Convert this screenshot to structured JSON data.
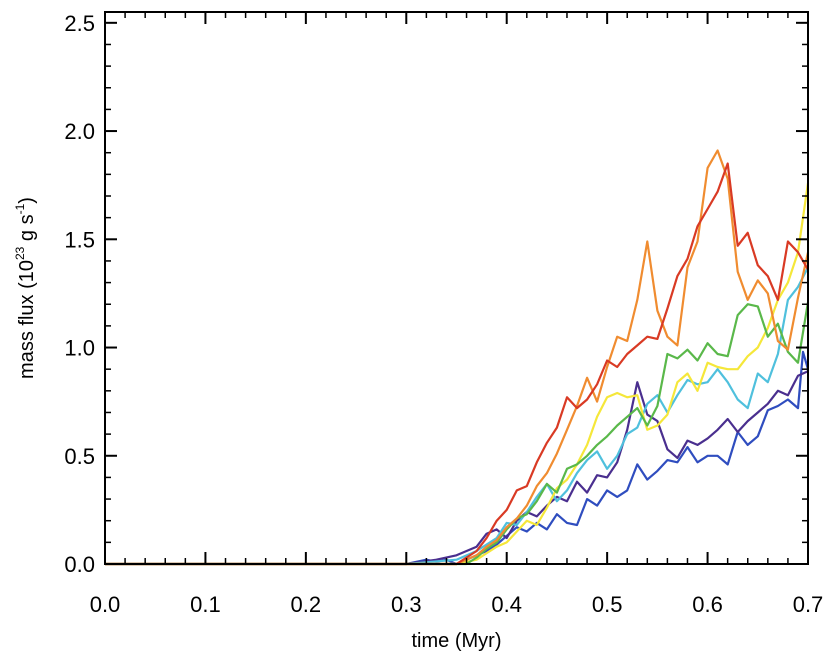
{
  "chart_data": {
    "type": "line",
    "title": "",
    "xlabel": "time (Myr)",
    "ylabel_parts": {
      "main": "mass flux (10",
      "exp": "23",
      "unit": " g s",
      "unit_exp": "-1",
      "close": ")"
    },
    "xlim": [
      0.0,
      0.7
    ],
    "ylim": [
      0.0,
      2.55
    ],
    "x_ticks": [
      "0.0",
      "0.1",
      "0.2",
      "0.3",
      "0.4",
      "0.5",
      "0.6",
      "0.7"
    ],
    "y_ticks": [
      "0.0",
      "0.5",
      "1.0",
      "1.5",
      "2.0",
      "2.5"
    ],
    "grid": false,
    "legend": "none",
    "series": [
      {
        "color": "#2f4dbf",
        "points": [
          [
            0.0,
            0.0
          ],
          [
            0.3,
            0.0
          ],
          [
            0.32,
            0.02
          ],
          [
            0.33,
            0.01
          ],
          [
            0.34,
            0.02
          ],
          [
            0.35,
            0.0
          ],
          [
            0.36,
            0.02
          ],
          [
            0.37,
            0.04
          ],
          [
            0.38,
            0.06
          ],
          [
            0.39,
            0.09
          ],
          [
            0.4,
            0.13
          ],
          [
            0.41,
            0.17
          ],
          [
            0.42,
            0.15
          ],
          [
            0.43,
            0.19
          ],
          [
            0.44,
            0.16
          ],
          [
            0.45,
            0.23
          ],
          [
            0.46,
            0.19
          ],
          [
            0.47,
            0.18
          ],
          [
            0.48,
            0.3
          ],
          [
            0.49,
            0.27
          ],
          [
            0.5,
            0.34
          ],
          [
            0.51,
            0.31
          ],
          [
            0.52,
            0.34
          ],
          [
            0.53,
            0.46
          ],
          [
            0.54,
            0.39
          ],
          [
            0.55,
            0.43
          ],
          [
            0.56,
            0.48
          ],
          [
            0.57,
            0.47
          ],
          [
            0.58,
            0.54
          ],
          [
            0.59,
            0.47
          ],
          [
            0.6,
            0.5
          ],
          [
            0.61,
            0.5
          ],
          [
            0.62,
            0.46
          ],
          [
            0.63,
            0.61
          ],
          [
            0.64,
            0.55
          ],
          [
            0.65,
            0.59
          ],
          [
            0.66,
            0.71
          ],
          [
            0.67,
            0.73
          ],
          [
            0.68,
            0.76
          ],
          [
            0.69,
            0.72
          ],
          [
            0.695,
            0.98
          ],
          [
            0.7,
            0.9
          ]
        ]
      },
      {
        "color": "#4a2f8f",
        "points": [
          [
            0.0,
            0.0
          ],
          [
            0.3,
            0.0
          ],
          [
            0.33,
            0.02
          ],
          [
            0.35,
            0.04
          ],
          [
            0.37,
            0.08
          ],
          [
            0.38,
            0.14
          ],
          [
            0.39,
            0.16
          ],
          [
            0.4,
            0.12
          ],
          [
            0.41,
            0.2
          ],
          [
            0.42,
            0.24
          ],
          [
            0.43,
            0.22
          ],
          [
            0.44,
            0.27
          ],
          [
            0.45,
            0.31
          ],
          [
            0.46,
            0.29
          ],
          [
            0.47,
            0.38
          ],
          [
            0.48,
            0.33
          ],
          [
            0.49,
            0.41
          ],
          [
            0.5,
            0.4
          ],
          [
            0.51,
            0.47
          ],
          [
            0.52,
            0.62
          ],
          [
            0.53,
            0.84
          ],
          [
            0.54,
            0.69
          ],
          [
            0.55,
            0.66
          ],
          [
            0.56,
            0.53
          ],
          [
            0.57,
            0.49
          ],
          [
            0.58,
            0.57
          ],
          [
            0.59,
            0.55
          ],
          [
            0.6,
            0.58
          ],
          [
            0.61,
            0.62
          ],
          [
            0.62,
            0.67
          ],
          [
            0.63,
            0.61
          ],
          [
            0.64,
            0.66
          ],
          [
            0.65,
            0.7
          ],
          [
            0.66,
            0.74
          ],
          [
            0.67,
            0.8
          ],
          [
            0.68,
            0.78
          ],
          [
            0.69,
            0.87
          ],
          [
            0.7,
            0.89
          ]
        ]
      },
      {
        "color": "#4fc0dd",
        "points": [
          [
            0.0,
            0.0
          ],
          [
            0.3,
            0.0
          ],
          [
            0.35,
            0.02
          ],
          [
            0.37,
            0.06
          ],
          [
            0.38,
            0.09
          ],
          [
            0.39,
            0.12
          ],
          [
            0.4,
            0.19
          ],
          [
            0.41,
            0.18
          ],
          [
            0.42,
            0.24
          ],
          [
            0.43,
            0.31
          ],
          [
            0.44,
            0.37
          ],
          [
            0.45,
            0.29
          ],
          [
            0.46,
            0.34
          ],
          [
            0.47,
            0.42
          ],
          [
            0.48,
            0.48
          ],
          [
            0.49,
            0.52
          ],
          [
            0.5,
            0.44
          ],
          [
            0.51,
            0.5
          ],
          [
            0.52,
            0.6
          ],
          [
            0.53,
            0.63
          ],
          [
            0.54,
            0.74
          ],
          [
            0.55,
            0.78
          ],
          [
            0.56,
            0.7
          ],
          [
            0.57,
            0.78
          ],
          [
            0.58,
            0.85
          ],
          [
            0.59,
            0.83
          ],
          [
            0.6,
            0.84
          ],
          [
            0.61,
            0.9
          ],
          [
            0.62,
            0.84
          ],
          [
            0.63,
            0.76
          ],
          [
            0.64,
            0.72
          ],
          [
            0.65,
            0.88
          ],
          [
            0.66,
            0.84
          ],
          [
            0.67,
            0.97
          ],
          [
            0.68,
            1.22
          ],
          [
            0.69,
            1.28
          ],
          [
            0.7,
            1.37
          ]
        ]
      },
      {
        "color": "#f5e73a",
        "points": [
          [
            0.0,
            0.0
          ],
          [
            0.35,
            0.0
          ],
          [
            0.37,
            0.02
          ],
          [
            0.38,
            0.05
          ],
          [
            0.39,
            0.08
          ],
          [
            0.4,
            0.1
          ],
          [
            0.41,
            0.15
          ],
          [
            0.42,
            0.2
          ],
          [
            0.43,
            0.18
          ],
          [
            0.44,
            0.26
          ],
          [
            0.45,
            0.35
          ],
          [
            0.46,
            0.39
          ],
          [
            0.47,
            0.46
          ],
          [
            0.48,
            0.55
          ],
          [
            0.49,
            0.68
          ],
          [
            0.5,
            0.77
          ],
          [
            0.51,
            0.79
          ],
          [
            0.52,
            0.77
          ],
          [
            0.53,
            0.78
          ],
          [
            0.54,
            0.62
          ],
          [
            0.55,
            0.64
          ],
          [
            0.56,
            0.69
          ],
          [
            0.57,
            0.84
          ],
          [
            0.58,
            0.88
          ],
          [
            0.59,
            0.8
          ],
          [
            0.6,
            0.93
          ],
          [
            0.61,
            0.91
          ],
          [
            0.62,
            0.9
          ],
          [
            0.63,
            0.9
          ],
          [
            0.64,
            0.96
          ],
          [
            0.65,
            1.0
          ],
          [
            0.66,
            1.09
          ],
          [
            0.67,
            1.22
          ],
          [
            0.68,
            1.3
          ],
          [
            0.69,
            1.44
          ],
          [
            0.7,
            1.76
          ]
        ]
      },
      {
        "color": "#5ab84a",
        "points": [
          [
            0.0,
            0.0
          ],
          [
            0.36,
            0.0
          ],
          [
            0.37,
            0.03
          ],
          [
            0.38,
            0.07
          ],
          [
            0.39,
            0.1
          ],
          [
            0.4,
            0.16
          ],
          [
            0.41,
            0.21
          ],
          [
            0.42,
            0.23
          ],
          [
            0.43,
            0.29
          ],
          [
            0.44,
            0.37
          ],
          [
            0.45,
            0.33
          ],
          [
            0.46,
            0.44
          ],
          [
            0.47,
            0.46
          ],
          [
            0.48,
            0.5
          ],
          [
            0.49,
            0.55
          ],
          [
            0.5,
            0.59
          ],
          [
            0.51,
            0.64
          ],
          [
            0.52,
            0.68
          ],
          [
            0.53,
            0.72
          ],
          [
            0.54,
            0.64
          ],
          [
            0.55,
            0.73
          ],
          [
            0.56,
            0.97
          ],
          [
            0.57,
            0.95
          ],
          [
            0.58,
            0.99
          ],
          [
            0.59,
            0.94
          ],
          [
            0.6,
            1.02
          ],
          [
            0.61,
            0.97
          ],
          [
            0.62,
            0.96
          ],
          [
            0.63,
            1.15
          ],
          [
            0.64,
            1.2
          ],
          [
            0.65,
            1.19
          ],
          [
            0.66,
            1.05
          ],
          [
            0.67,
            1.11
          ],
          [
            0.68,
            0.98
          ],
          [
            0.69,
            0.93
          ],
          [
            0.7,
            1.21
          ]
        ]
      },
      {
        "color": "#f08c30",
        "points": [
          [
            0.0,
            0.0
          ],
          [
            0.35,
            0.0
          ],
          [
            0.37,
            0.04
          ],
          [
            0.38,
            0.08
          ],
          [
            0.39,
            0.11
          ],
          [
            0.4,
            0.17
          ],
          [
            0.41,
            0.21
          ],
          [
            0.42,
            0.27
          ],
          [
            0.43,
            0.36
          ],
          [
            0.44,
            0.42
          ],
          [
            0.45,
            0.51
          ],
          [
            0.46,
            0.62
          ],
          [
            0.47,
            0.73
          ],
          [
            0.48,
            0.86
          ],
          [
            0.49,
            0.75
          ],
          [
            0.5,
            0.91
          ],
          [
            0.51,
            1.05
          ],
          [
            0.52,
            1.03
          ],
          [
            0.53,
            1.22
          ],
          [
            0.54,
            1.49
          ],
          [
            0.55,
            1.17
          ],
          [
            0.56,
            1.05
          ],
          [
            0.57,
            1.01
          ],
          [
            0.58,
            1.37
          ],
          [
            0.59,
            1.49
          ],
          [
            0.6,
            1.83
          ],
          [
            0.61,
            1.91
          ],
          [
            0.62,
            1.78
          ],
          [
            0.63,
            1.35
          ],
          [
            0.64,
            1.22
          ],
          [
            0.65,
            1.31
          ],
          [
            0.66,
            1.25
          ],
          [
            0.67,
            1.03
          ],
          [
            0.68,
            0.99
          ],
          [
            0.69,
            1.23
          ],
          [
            0.7,
            1.44
          ]
        ]
      },
      {
        "color": "#d93a24",
        "points": [
          [
            0.0,
            0.0
          ],
          [
            0.35,
            0.0
          ],
          [
            0.37,
            0.06
          ],
          [
            0.38,
            0.12
          ],
          [
            0.39,
            0.2
          ],
          [
            0.4,
            0.25
          ],
          [
            0.41,
            0.34
          ],
          [
            0.42,
            0.36
          ],
          [
            0.43,
            0.47
          ],
          [
            0.44,
            0.56
          ],
          [
            0.45,
            0.63
          ],
          [
            0.46,
            0.77
          ],
          [
            0.47,
            0.72
          ],
          [
            0.48,
            0.76
          ],
          [
            0.49,
            0.83
          ],
          [
            0.5,
            0.94
          ],
          [
            0.51,
            0.91
          ],
          [
            0.52,
            0.97
          ],
          [
            0.53,
            1.01
          ],
          [
            0.54,
            1.05
          ],
          [
            0.55,
            1.04
          ],
          [
            0.56,
            1.18
          ],
          [
            0.57,
            1.33
          ],
          [
            0.58,
            1.41
          ],
          [
            0.59,
            1.56
          ],
          [
            0.6,
            1.64
          ],
          [
            0.61,
            1.72
          ],
          [
            0.62,
            1.85
          ],
          [
            0.63,
            1.47
          ],
          [
            0.64,
            1.53
          ],
          [
            0.65,
            1.38
          ],
          [
            0.66,
            1.33
          ],
          [
            0.67,
            1.22
          ],
          [
            0.68,
            1.49
          ],
          [
            0.69,
            1.44
          ],
          [
            0.7,
            1.36
          ]
        ]
      }
    ]
  }
}
